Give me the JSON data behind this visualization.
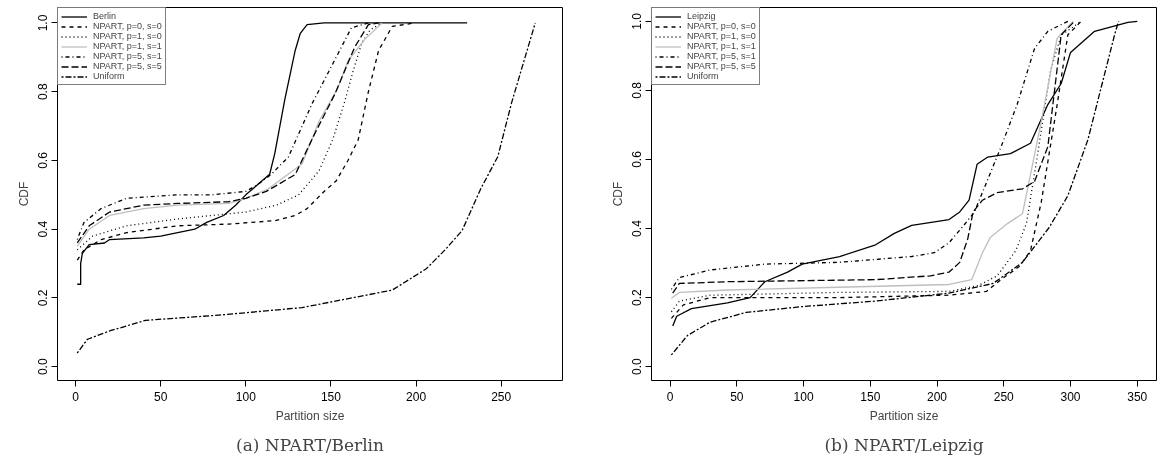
{
  "chart_data": [
    {
      "type": "line",
      "title": "(a) NPART/Berlin",
      "xlabel": "Partition size",
      "ylabel": "CDF",
      "xlim": [
        -10.6,
        286
      ],
      "ylim": [
        -0.04,
        1.045
      ],
      "xticks": [
        0,
        50,
        100,
        150,
        200,
        250
      ],
      "yticks": [
        {
          "value": 0,
          "label": "0.0"
        },
        {
          "value": 0.2,
          "label": "0.2"
        },
        {
          "value": 0.4,
          "label": "0.4"
        },
        {
          "value": 0.6,
          "label": "0.6"
        },
        {
          "value": 0.8,
          "label": "0.8"
        },
        {
          "value": 1,
          "label": "1.0"
        }
      ],
      "grid": false,
      "legend": "top left",
      "series": [
        {
          "name": "Berlin",
          "color": "#000000",
          "line_style": "solid",
          "x": [
            1,
            3,
            3,
            4,
            8,
            17,
            20,
            40,
            50,
            60,
            70,
            77,
            87,
            94,
            100,
            107,
            114,
            117,
            120,
            123,
            126,
            129,
            132,
            136,
            146,
            230
          ],
          "values": [
            0.24,
            0.24,
            0.3,
            0.33,
            0.355,
            0.36,
            0.37,
            0.375,
            0.38,
            0.39,
            0.4,
            0.42,
            0.44,
            0.47,
            0.5,
            0.53,
            0.56,
            0.62,
            0.7,
            0.78,
            0.85,
            0.92,
            0.97,
            0.995,
            1,
            1
          ]
        },
        {
          "name": "NPART, p=0, s=0",
          "color": "#000000",
          "line_style": "dashed",
          "x": [
            1,
            5,
            15,
            30,
            60,
            90,
            117,
            129,
            136,
            146,
            153,
            160,
            166,
            172,
            178,
            186,
            199
          ],
          "values": [
            0.31,
            0.34,
            0.37,
            0.39,
            0.41,
            0.415,
            0.425,
            0.44,
            0.46,
            0.51,
            0.54,
            0.6,
            0.66,
            0.8,
            0.92,
            0.99,
            1
          ]
        },
        {
          "name": "NPART, p=1, s=0",
          "color": "#000000",
          "line_style": "dotted",
          "x": [
            1,
            10,
            30,
            60,
            100,
            118,
            131,
            143,
            151,
            158,
            163,
            168,
            173,
            180
          ],
          "values": [
            0.34,
            0.38,
            0.41,
            0.43,
            0.45,
            0.47,
            0.5,
            0.57,
            0.66,
            0.77,
            0.86,
            0.94,
            0.98,
            1
          ]
        },
        {
          "name": "NPART, p=1, s=1",
          "color": "#bebebe",
          "line_style": "solid",
          "x": [
            1,
            8,
            20,
            40,
            60,
            90,
            100,
            113,
            122,
            133,
            143,
            154,
            160,
            170,
            180
          ],
          "values": [
            0.35,
            0.4,
            0.44,
            0.46,
            0.47,
            0.475,
            0.49,
            0.517,
            0.55,
            0.59,
            0.714,
            0.81,
            0.89,
            0.953,
            1
          ]
        },
        {
          "name": "NPART, p=5, s=1",
          "color": "#000000",
          "line_style": "dotdash",
          "x": [
            1,
            5,
            15,
            30,
            60,
            80,
            100,
            107,
            115,
            125,
            139,
            152,
            162,
            172
          ],
          "values": [
            0.37,
            0.42,
            0.46,
            0.49,
            0.5,
            0.5,
            0.51,
            0.53,
            0.56,
            0.61,
            0.766,
            0.89,
            0.986,
            1
          ]
        },
        {
          "name": "NPART, p=5, s=5",
          "color": "#000000",
          "line_style": "longdash",
          "x": [
            1,
            8,
            20,
            40,
            60,
            90,
            100,
            112,
            129,
            141,
            152,
            164,
            172,
            178
          ],
          "values": [
            0.36,
            0.41,
            0.45,
            0.47,
            0.475,
            0.48,
            0.49,
            0.51,
            0.559,
            0.683,
            0.79,
            0.93,
            0.995,
            1
          ]
        },
        {
          "name": "Uniform",
          "color": "#000000",
          "line_style": "twodash",
          "x": [
            1,
            7,
            20,
            41,
            84,
            133,
            186,
            206,
            217,
            227,
            238,
            248,
            256,
            264,
            270
          ],
          "values": [
            0.04,
            0.08,
            0.104,
            0.135,
            0.15,
            0.172,
            0.223,
            0.285,
            0.34,
            0.396,
            0.518,
            0.611,
            0.766,
            0.9,
            1
          ]
        }
      ]
    },
    {
      "type": "line",
      "title": "(b) NPART/Leipzig",
      "xlabel": "Partition size",
      "ylabel": "CDF",
      "xlim": [
        -13.9,
        364.4
      ],
      "ylim": [
        -0.04,
        1.04
      ],
      "xticks": [
        0,
        50,
        100,
        150,
        200,
        250,
        300,
        350
      ],
      "yticks": [
        {
          "value": 0,
          "label": "0.0"
        },
        {
          "value": 0.2,
          "label": "0.2"
        },
        {
          "value": 0.4,
          "label": "0.4"
        },
        {
          "value": 0.6,
          "label": "0.6"
        },
        {
          "value": 0.8,
          "label": "0.8"
        },
        {
          "value": 1,
          "label": "1.0"
        }
      ],
      "grid": false,
      "legend": "top left",
      "series": [
        {
          "name": "Leipzig",
          "color": "#000000",
          "line_style": "solid",
          "x": [
            2,
            5,
            16,
            43,
            60,
            71,
            88,
            99,
            127,
            154,
            168,
            181,
            209,
            217,
            224,
            230,
            238,
            255,
            270,
            283,
            293,
            300,
            318,
            343,
            350
          ],
          "values": [
            0.118,
            0.146,
            0.168,
            0.185,
            0.2,
            0.246,
            0.274,
            0.297,
            0.319,
            0.353,
            0.386,
            0.409,
            0.426,
            0.448,
            0.482,
            0.586,
            0.607,
            0.617,
            0.647,
            0.759,
            0.82,
            0.91,
            0.971,
            0.997,
            1
          ]
        },
        {
          "name": "NPART, p=0, s=0",
          "color": "#000000",
          "line_style": "dashed",
          "x": [
            1,
            10,
            30,
            126,
            209,
            237,
            250,
            262,
            270,
            278,
            290,
            298,
            308
          ],
          "values": [
            0.14,
            0.179,
            0.2,
            0.2,
            0.207,
            0.218,
            0.258,
            0.291,
            0.336,
            0.475,
            0.759,
            0.961,
            1
          ]
        },
        {
          "name": "NPART, p=1, s=0",
          "color": "#000000",
          "line_style": "dotted",
          "x": [
            1,
            7,
            30,
            126,
            209,
            231,
            245,
            259,
            267,
            275,
            285,
            293,
            308
          ],
          "values": [
            0.159,
            0.19,
            0.207,
            0.215,
            0.218,
            0.235,
            0.263,
            0.336,
            0.415,
            0.607,
            0.857,
            0.96,
            1
          ]
        },
        {
          "name": "NPART, p=1, s=1",
          "color": "#bebebe",
          "line_style": "solid",
          "x": [
            1,
            7,
            43,
            126,
            209,
            226,
            234,
            240,
            253,
            264,
            270,
            278,
            290,
            302
          ],
          "values": [
            0.198,
            0.215,
            0.222,
            0.23,
            0.238,
            0.252,
            0.33,
            0.375,
            0.415,
            0.443,
            0.556,
            0.708,
            0.951,
            1
          ]
        },
        {
          "name": "NPART, p=5, s=1",
          "color": "#000000",
          "line_style": "dotdash",
          "x": [
            1,
            7,
            30,
            71,
            126,
            181,
            198,
            209,
            220,
            228,
            233,
            248,
            260,
            273,
            283,
            298
          ],
          "values": [
            0.224,
            0.258,
            0.28,
            0.297,
            0.302,
            0.319,
            0.33,
            0.359,
            0.409,
            0.448,
            0.495,
            0.637,
            0.759,
            0.921,
            0.971,
            1
          ]
        },
        {
          "name": "NPART, p=5, s=5",
          "color": "#000000",
          "line_style": "longdash",
          "x": [
            2,
            7,
            43,
            154,
            195,
            209,
            217,
            223,
            227,
            234,
            245,
            264,
            273,
            283,
            293,
            303
          ],
          "values": [
            0.213,
            0.241,
            0.246,
            0.252,
            0.263,
            0.274,
            0.302,
            0.37,
            0.448,
            0.482,
            0.504,
            0.515,
            0.536,
            0.637,
            0.961,
            1
          ]
        },
        {
          "name": "Uniform",
          "color": "#000000",
          "line_style": "twodash",
          "x": [
            1,
            13,
            30,
            57,
            99,
            154,
            209,
            242,
            264,
            284,
            298,
            313,
            323,
            333,
            336
          ],
          "values": [
            0.034,
            0.09,
            0.129,
            0.157,
            0.174,
            0.19,
            0.213,
            0.241,
            0.302,
            0.403,
            0.495,
            0.657,
            0.809,
            0.961,
            1
          ]
        }
      ]
    }
  ]
}
